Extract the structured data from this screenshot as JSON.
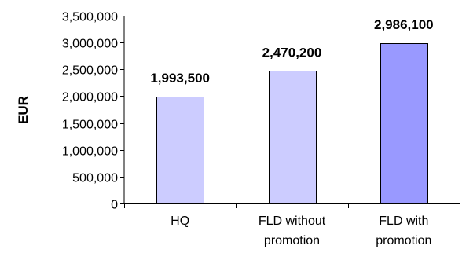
{
  "chart_data": {
    "type": "bar",
    "title": "",
    "xlabel": "",
    "ylabel": "EUR",
    "ylim": [
      0,
      3500000
    ],
    "yticks": [
      0,
      500000,
      1000000,
      1500000,
      2000000,
      2500000,
      3000000,
      3500000
    ],
    "ytick_labels": [
      "0",
      "500,000",
      "1,000,000",
      "1,500,000",
      "2,000,000",
      "2,500,000",
      "3,000,000",
      "3,500,000"
    ],
    "grid": false,
    "legend": "none",
    "categories": [
      [
        "HQ"
      ],
      [
        "FLD without",
        "promotion"
      ],
      [
        "FLD with",
        "promotion"
      ]
    ],
    "values": [
      1993500,
      2470200,
      2986100
    ],
    "data_labels": [
      "1,993,500",
      "2,470,200",
      "2,986,100"
    ],
    "colors": {
      "bars": [
        "#ccccff",
        "#ccccff",
        "#9999ff"
      ],
      "bar_stroke": "#000000",
      "axis": "#000000"
    }
  }
}
